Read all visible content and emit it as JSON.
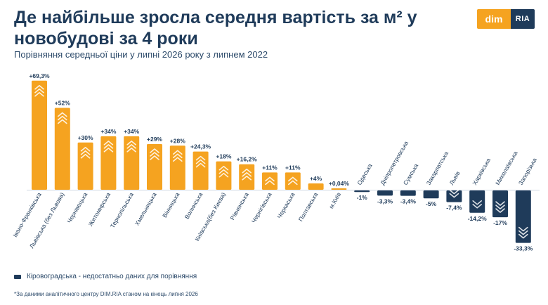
{
  "header": {
    "title": "Де найбільше зросла середня вартість за м² у новобудові за 4 роки",
    "subtitle": "Порівняння середньої ціни у липні 2026 року з липнем 2022"
  },
  "logo": {
    "left": "dim",
    "right": "RIA"
  },
  "colors": {
    "positive": "#f5a320",
    "negative": "#1f3b5a",
    "text": "#1f3b5a"
  },
  "note": "Кіровоградська - недостатньо даних для порівняння",
  "footnote": "*За даними аналітичного центру DIM.RIA станом на кінець липня 2026",
  "chart_data": {
    "type": "bar",
    "title": "Де найбільше зросла середня вартість за м² у новобудові за 4 роки",
    "subtitle": "Порівняння середньої ціни у липні 2026 року з липнем 2022",
    "categories": [
      "Івано-Франківська",
      "Львівська (без Львова)",
      "Чернівецька",
      "Житомирська",
      "Тернопільська",
      "Хмельницька",
      "Вінницька",
      "Волинська",
      "Київська(без Києва)",
      "Рівненська",
      "Чернігівська",
      "Черкаська",
      "Полтавська",
      "м.Київ",
      "Одеська",
      "Дніпропетровська",
      "Сумська",
      "Закарпатська",
      "Львів",
      "Харківська",
      "Миколаївська",
      "Запорізька"
    ],
    "values": [
      69.3,
      52,
      30,
      34,
      34,
      29,
      28,
      24.3,
      18,
      16.2,
      11,
      11,
      4,
      0.04,
      -1,
      -3.3,
      -3.4,
      -5,
      -7.4,
      -14.2,
      -17,
      -33.3
    ],
    "labels": [
      "+69,3%",
      "+52%",
      "+30%",
      "+34%",
      "+34%",
      "+29%",
      "+28%",
      "+24,3%",
      "+18%",
      "+16,2%",
      "+11%",
      "+11%",
      "+4%",
      "+0,04%",
      "-1%",
      "-3,3%",
      "-3,4%",
      "-5%",
      "-7,4%",
      "-14,2%",
      "-17%",
      "-33,3%"
    ],
    "unit": "%",
    "grid": false,
    "legend": "none"
  }
}
